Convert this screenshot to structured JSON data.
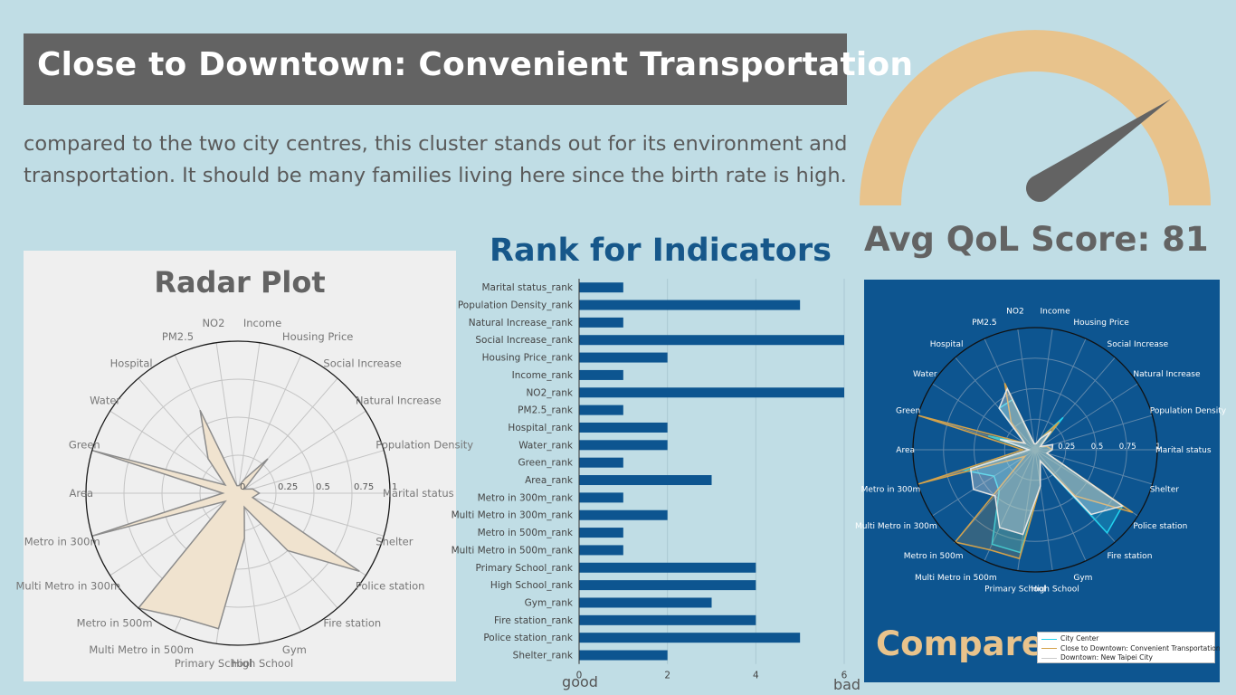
{
  "header": {
    "title": "Close to Downtown: Convenient Transportation",
    "description": "compared to the two city centres, this cluster stands out for its environment and transportation. It should be many families living here since the birth rate is high."
  },
  "gauge": {
    "label": "Avg QoL Score: 81",
    "value": 81,
    "max": 100,
    "arc_color": "#e8c38c",
    "needle_color": "#636363"
  },
  "colors": {
    "background": "#c0dde5",
    "title_bg": "#636363",
    "bar": "#0d5590",
    "radar_fill": "#f0e3cf",
    "radar_line": "#888888"
  },
  "chart_data": [
    {
      "type": "radar",
      "title": "Radar Plot",
      "axes": [
        "Marital status",
        "Population Density",
        "Natural Increase",
        "Social Increase",
        "Housing Price",
        "Income",
        "NO2",
        "PM2.5",
        "Hospital",
        "Water",
        "Green",
        "Area",
        "Metro in 300m",
        "Multi Metro in 300m",
        "Metro in 500m",
        "Multi Metro in 500m",
        "Primary School",
        "High School",
        "Gym",
        "Fire station",
        "Police station",
        "Shelter"
      ],
      "radial_ticks": [
        "0",
        "0.25",
        "0.5",
        "0.75",
        "1"
      ],
      "rlim": [
        0,
        1
      ],
      "values": [
        0.14,
        0.1,
        0.05,
        0.3,
        0.1,
        0.05,
        0.05,
        0.6,
        0.3,
        0.1,
        1.0,
        0.1,
        1.0,
        0.1,
        1.0,
        0.9,
        0.9,
        0.3,
        0.1,
        0.5,
        0.95,
        0.1
      ]
    },
    {
      "type": "bar",
      "orientation": "horizontal",
      "title": "Rank for Indicators",
      "categories": [
        "Marital status_rank",
        "Population Density_rank",
        "Natural Increase_rank",
        "Social Increase_rank",
        "Housing Price_rank",
        "Income_rank",
        "NO2_rank",
        "PM2.5_rank",
        "Hospital_rank",
        "Water_rank",
        "Green_rank",
        "Area_rank",
        "Metro in 300m_rank",
        "Multi Metro in 300m_rank",
        "Metro in 500m_rank",
        "Multi Metro in 500m_rank",
        "Primary School_rank",
        "High School_rank",
        "Gym_rank",
        "Fire station_rank",
        "Police station_rank",
        "Shelter_rank"
      ],
      "values": [
        1,
        5,
        1,
        6,
        2,
        1,
        6,
        1,
        2,
        2,
        1,
        3,
        1,
        2,
        1,
        1,
        4,
        4,
        3,
        4,
        5,
        2
      ],
      "xlim": [
        0,
        6
      ],
      "xticks": [
        "0",
        "2",
        "4",
        "6"
      ],
      "xlabel_left": "good",
      "xlabel_right": "bad"
    },
    {
      "type": "radar",
      "title": "Compare",
      "axes": [
        "Marital status",
        "Population Density",
        "Natural Increase",
        "Social Increase",
        "Housing Price",
        "Income",
        "NO2",
        "PM2.5",
        "Hospital",
        "Water",
        "Green",
        "Area",
        "Metro in 300m",
        "Multi Metro in 300m",
        "Metro in 500m",
        "Multi Metro in 500m",
        "Primary School",
        "High School",
        "Gym",
        "Fire station",
        "Police station",
        "Shelter"
      ],
      "radial_ticks": [
        "0.25",
        "0.5",
        "0.75",
        "1"
      ],
      "rlim": [
        0,
        1
      ],
      "series": [
        {
          "name": "City Center",
          "color": "#22d3ee",
          "values": [
            0.14,
            0.1,
            0.05,
            0.35,
            0.1,
            0.05,
            0.05,
            0.45,
            0.45,
            0.1,
            0.4,
            0.05,
            0.6,
            0.4,
            0.45,
            0.85,
            0.85,
            0.3,
            0.1,
            0.9,
            0.85,
            0.1
          ]
        },
        {
          "name": "Close to Downtown: Convenient Transportation",
          "color": "#d4a24a",
          "values": [
            0.14,
            0.1,
            0.05,
            0.3,
            0.1,
            0.05,
            0.05,
            0.6,
            0.3,
            0.1,
            1.0,
            0.1,
            1.0,
            0.1,
            1.0,
            0.9,
            0.9,
            0.3,
            0.1,
            0.5,
            0.95,
            0.1
          ]
        },
        {
          "name": "Downtown: New Taipei City",
          "color": "#e6e6e6",
          "values": [
            0.14,
            0.15,
            0.05,
            0.2,
            0.1,
            0.05,
            0.05,
            0.55,
            0.45,
            0.1,
            0.3,
            0.05,
            0.55,
            0.6,
            0.5,
            0.7,
            0.7,
            0.3,
            0.1,
            0.7,
            0.85,
            0.1
          ]
        }
      ]
    }
  ]
}
